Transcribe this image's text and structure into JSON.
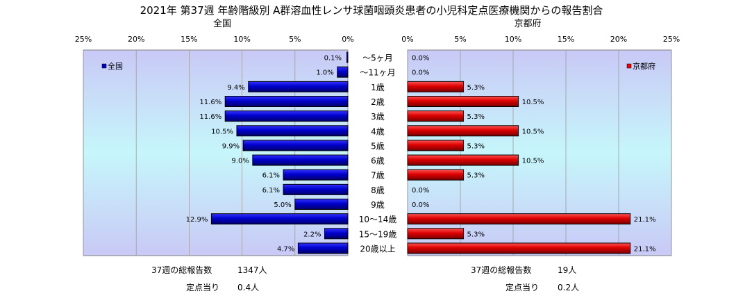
{
  "chart_data": {
    "type": "bar",
    "title": "2021年 第37週 年齢階級別 A群溶血性レンサ球菌咽頭炎患者の小児科定点医療機関からの報告割合",
    "categories": [
      "～5ヶ月",
      "～11ヶ月",
      "1歳",
      "2歳",
      "3歳",
      "4歳",
      "5歳",
      "6歳",
      "7歳",
      "8歳",
      "9歳",
      "10～14歳",
      "15～19歳",
      "20歳以上"
    ],
    "xlim": [
      0,
      25
    ],
    "ticks": [
      25,
      20,
      15,
      10,
      5,
      0
    ],
    "tick_suffix": "%",
    "series": [
      {
        "name": "全国",
        "panel_title": "全国",
        "legend": "全国",
        "color": "#0000cc",
        "values": [
          0.1,
          1.0,
          9.4,
          11.6,
          11.6,
          10.5,
          9.9,
          9.0,
          6.1,
          6.1,
          5.0,
          12.9,
          2.2,
          4.7
        ],
        "labels": [
          "0.1%",
          "1.0%",
          "9.4%",
          "11.6%",
          "11.6%",
          "10.5%",
          "9.9%",
          "9.0%",
          "6.1%",
          "6.1%",
          "5.0%",
          "12.9%",
          "2.2%",
          "4.7%"
        ]
      },
      {
        "name": "京都府",
        "panel_title": "京都府",
        "legend": "京都府",
        "color": "#ee0000",
        "values": [
          0.0,
          0.0,
          5.3,
          10.5,
          5.3,
          10.5,
          5.3,
          10.5,
          5.3,
          0.0,
          0.0,
          21.1,
          5.3,
          21.1
        ],
        "labels": [
          "0.0%",
          "0.0%",
          "5.3%",
          "10.5%",
          "5.3%",
          "10.5%",
          "5.3%",
          "10.5%",
          "5.3%",
          "0.0%",
          "0.0%",
          "21.1%",
          "5.3%",
          "21.1%"
        ]
      }
    ],
    "grid": true,
    "legend_position": [
      "top-left",
      "top-right"
    ]
  },
  "footer": {
    "national": {
      "total_label": "37週の総報告数",
      "total_value": "1347人",
      "per_label": "定点当り",
      "per_value": "0.4人"
    },
    "kyoto": {
      "total_label": "37週の総報告数",
      "total_value": "19人",
      "per_label": "定点当り",
      "per_value": "0.2人"
    }
  }
}
